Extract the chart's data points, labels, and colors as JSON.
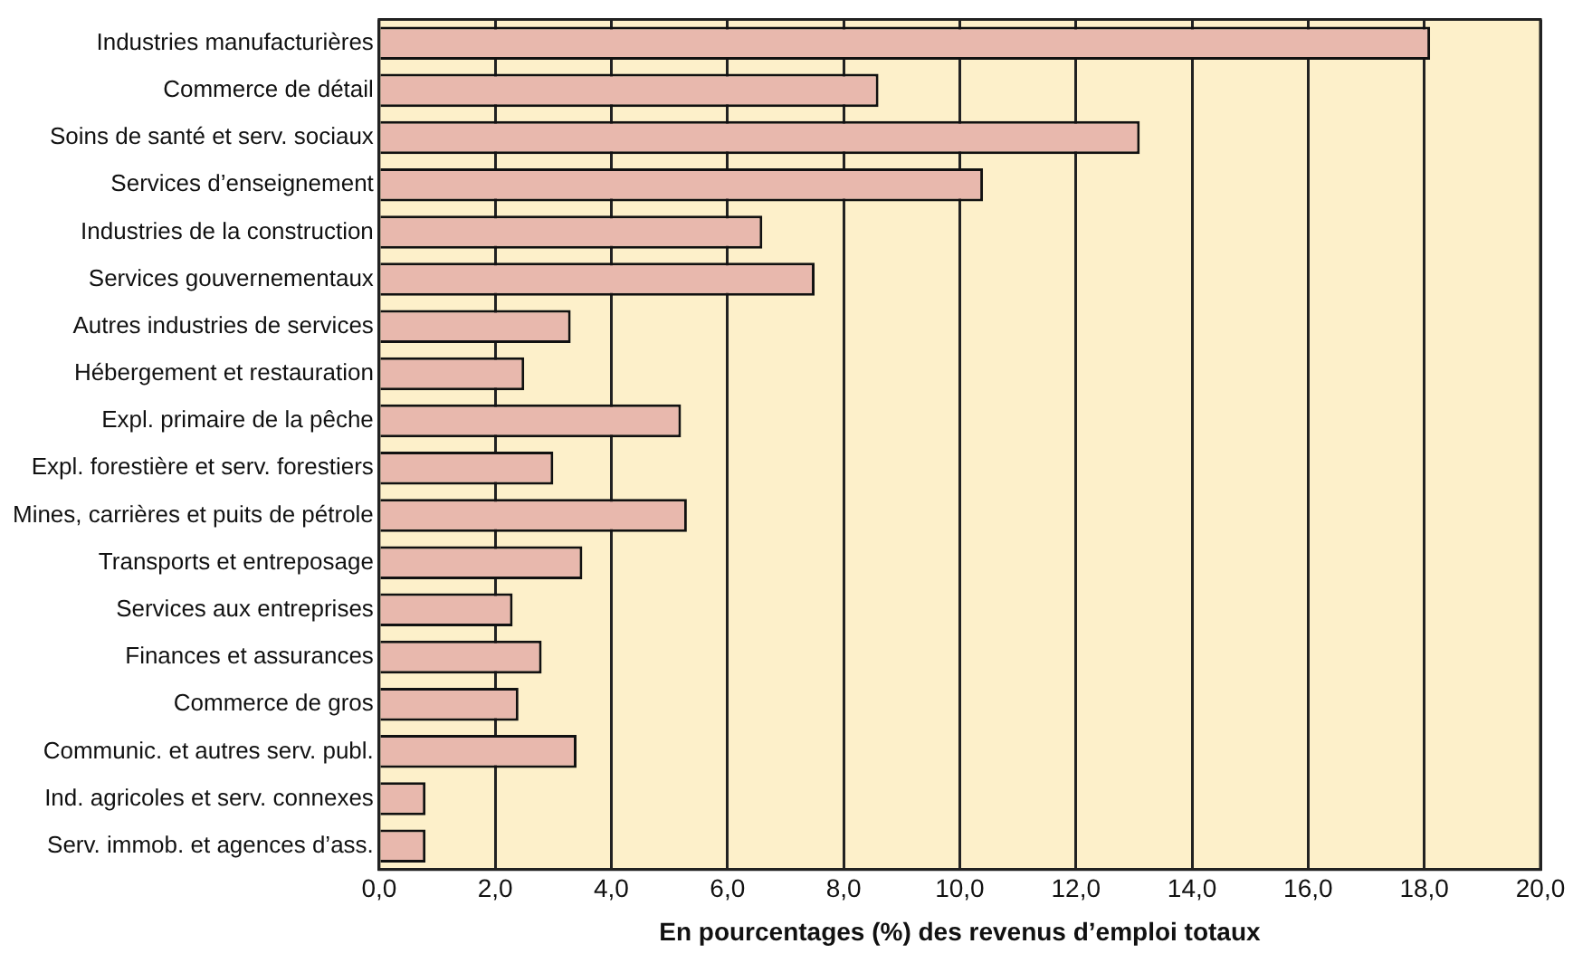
{
  "chart_data": {
    "type": "bar",
    "orientation": "horizontal",
    "xlabel": "En pourcentages (%) des revenus d’emploi totaux",
    "categories": [
      "Industries manufacturières",
      "Commerce de détail",
      "Soins de santé et serv. sociaux",
      "Services d’enseignement",
      "Industries de la construction",
      "Services gouvernementaux",
      "Autres industries de services",
      "Hébergement et restauration",
      "Expl. primaire de la pêche",
      "Expl. forestière et serv. forestiers",
      "Mines, carrières et puits de pétrole",
      "Transports et entreposage",
      "Services aux entreprises",
      "Finances et assurances",
      "Commerce de gros",
      "Communic. et autres serv. publ.",
      "Ind. agricoles et serv. connexes",
      "Serv. immob. et agences d’ass."
    ],
    "values": [
      18.1,
      8.6,
      13.1,
      10.4,
      6.6,
      7.5,
      3.3,
      2.5,
      5.2,
      3.0,
      5.3,
      3.5,
      2.3,
      2.8,
      2.4,
      3.4,
      0.8,
      0.8
    ],
    "color": "#e8b8ad",
    "xlim": [
      0,
      20
    ],
    "xticks": [
      {
        "value": 0,
        "label": "0,0"
      },
      {
        "value": 2,
        "label": "2,0"
      },
      {
        "value": 4,
        "label": "4,0"
      },
      {
        "value": 6,
        "label": "6,0"
      },
      {
        "value": 8,
        "label": "8,0"
      },
      {
        "value": 10,
        "label": "10,0"
      },
      {
        "value": 12,
        "label": "12,0"
      },
      {
        "value": 14,
        "label": "14,0"
      },
      {
        "value": 16,
        "label": "16,0"
      },
      {
        "value": 18,
        "label": "18,0"
      },
      {
        "value": 20,
        "label": "20,0"
      }
    ],
    "grid": "x"
  }
}
